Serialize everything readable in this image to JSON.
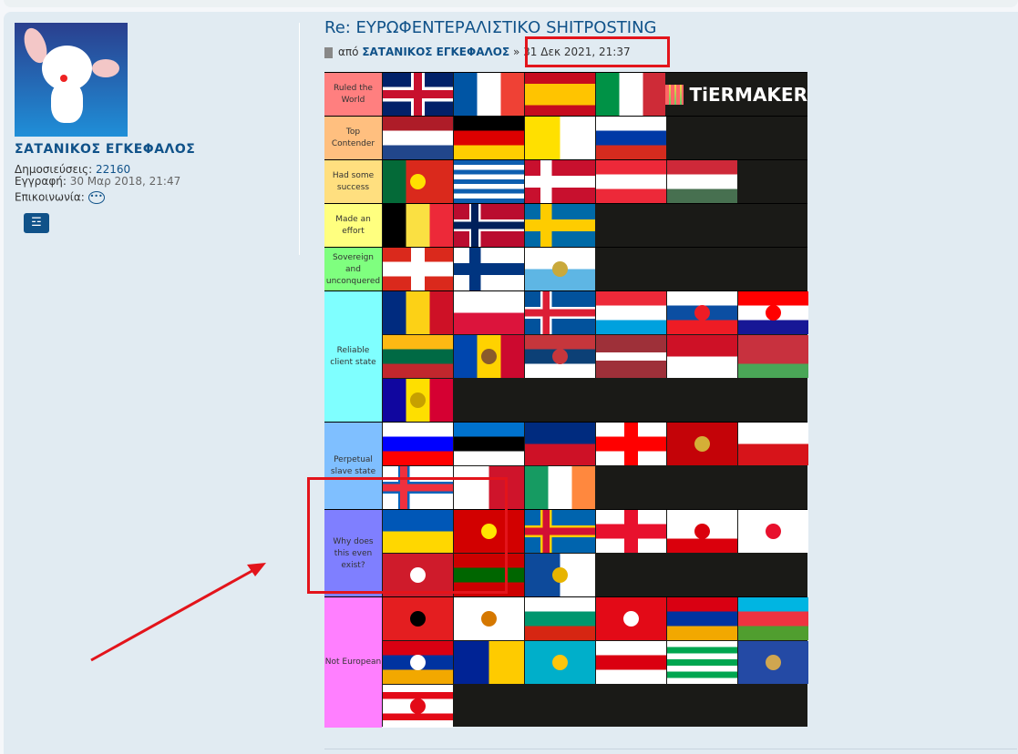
{
  "profile": {
    "username": "ΣΑΤΑΝΙΚΟΣ ΕΓΚΕΦΑΛΟΣ",
    "posts_label": "Δημοσιεύσεις:",
    "posts": "22160",
    "joined_label": "Εγγραφή:",
    "joined": "30 Μαρ 2018, 21:47",
    "contact_label": "Επικοινωνία:"
  },
  "post": {
    "title": "Re: ΕΥΡΩΦΕΝΤΕΡΑΛΙΣΤΙΚΟ SHITPOSTING",
    "by": "από",
    "author": "ΣΑΤΑΝΙΚΟΣ ΕΓΚΕΦΑΛΟΣ",
    "sep": "»",
    "date": "31 Δεκ 2021, 21:37"
  },
  "tierlist": {
    "logo": "TiERMAKER",
    "cell_bg": "#1a1a17",
    "tiers": [
      {
        "label": "Ruled the World",
        "color": "#ff7f7f",
        "flags": [
          {
            "id": "uk",
            "t": "cross",
            "bg": "#012169",
            "c": "#c8102e",
            "b": "#ffffff"
          },
          {
            "id": "france",
            "t": "v",
            "c": [
              "#0055a4",
              "#ffffff",
              "#ef4135"
            ]
          },
          {
            "id": "spain",
            "t": "h",
            "c": [
              "#c60b1e",
              "#ffc400",
              "#ffc400",
              "#c60b1e"
            ]
          },
          {
            "id": "italy",
            "t": "v",
            "c": [
              "#009246",
              "#ffffff",
              "#ce2b37"
            ]
          }
        ]
      },
      {
        "label": "Top Contender",
        "color": "#ffbf7f",
        "flags": [
          {
            "id": "netherlands",
            "t": "h",
            "c": [
              "#ae1c28",
              "#ffffff",
              "#21468b"
            ]
          },
          {
            "id": "germany",
            "t": "h",
            "c": [
              "#000000",
              "#dd0000",
              "#ffce00"
            ]
          },
          {
            "id": "vatican",
            "t": "v",
            "c": [
              "#ffe000",
              "#ffffff"
            ]
          },
          {
            "id": "russia",
            "t": "h",
            "c": [
              "#ffffff",
              "#0039a6",
              "#d52b1e"
            ]
          }
        ]
      },
      {
        "label": "Had some success",
        "color": "#ffdf7f",
        "flags": [
          {
            "id": "portugal",
            "t": "v",
            "c": [
              "#046a38",
              "#da291c",
              "#da291c"
            ],
            "em": "#ffe000"
          },
          {
            "id": "greece",
            "t": "h",
            "c": [
              "#0d5eaf",
              "#ffffff",
              "#0d5eaf",
              "#ffffff",
              "#0d5eaf",
              "#ffffff",
              "#0d5eaf",
              "#ffffff",
              "#0d5eaf"
            ]
          },
          {
            "id": "denmark",
            "t": "nordic",
            "bg": "#c8102e",
            "c": "#ffffff"
          },
          {
            "id": "austria",
            "t": "h",
            "c": [
              "#ed2939",
              "#ffffff",
              "#ed2939"
            ]
          },
          {
            "id": "hungary",
            "t": "h",
            "c": [
              "#ce2939",
              "#ffffff",
              "#477050"
            ]
          }
        ]
      },
      {
        "label": "Made an effort",
        "color": "#ffff7f",
        "flags": [
          {
            "id": "belgium",
            "t": "v",
            "c": [
              "#000000",
              "#fae042",
              "#ed2939"
            ]
          },
          {
            "id": "norway",
            "t": "nordic",
            "bg": "#ba0c2f",
            "c": "#00205b",
            "b": "#ffffff"
          },
          {
            "id": "sweden",
            "t": "nordic",
            "bg": "#006aa7",
            "c": "#fecc00"
          }
        ]
      },
      {
        "label": "Sovereign and unconquered",
        "color": "#7fff7f",
        "flags": [
          {
            "id": "switzerland",
            "t": "cross",
            "bg": "#da291c",
            "c": "#ffffff"
          },
          {
            "id": "finland",
            "t": "nordic",
            "bg": "#ffffff",
            "c": "#003580"
          },
          {
            "id": "san-marino",
            "t": "h",
            "c": [
              "#ffffff",
              "#5eb6e4"
            ],
            "em": "#c9a93b"
          }
        ]
      },
      {
        "label": "Reliable client state",
        "color": "#7fffff",
        "flags": [
          {
            "id": "romania",
            "t": "v",
            "c": [
              "#002b7f",
              "#fcd116",
              "#ce1126"
            ]
          },
          {
            "id": "poland",
            "t": "h",
            "c": [
              "#ffffff",
              "#dc143c"
            ]
          },
          {
            "id": "iceland",
            "t": "nordic",
            "bg": "#02529c",
            "c": "#dc1e35",
            "b": "#ffffff"
          },
          {
            "id": "luxembourg",
            "t": "h",
            "c": [
              "#ed2939",
              "#ffffff",
              "#00a1de"
            ]
          },
          {
            "id": "slovakia",
            "t": "h",
            "c": [
              "#ffffff",
              "#0b4ea2",
              "#ee1c25"
            ],
            "em": "#ee1c25"
          },
          {
            "id": "croatia",
            "t": "h",
            "c": [
              "#ff0000",
              "#ffffff",
              "#171796"
            ],
            "em": "#ff0000"
          },
          {
            "id": "lithuania",
            "t": "h",
            "c": [
              "#fdb913",
              "#006a44",
              "#c1272d"
            ]
          },
          {
            "id": "moldova",
            "t": "v",
            "c": [
              "#0046ae",
              "#ffd200",
              "#cc092f"
            ],
            "em": "#8a5a2b"
          },
          {
            "id": "serbia",
            "t": "h",
            "c": [
              "#c6363c",
              "#0c4076",
              "#ffffff"
            ],
            "em": "#c6363c"
          },
          {
            "id": "latvia",
            "t": "h",
            "c": [
              "#9e3039",
              "#9e3039",
              "#ffffff",
              "#9e3039",
              "#9e3039"
            ]
          },
          {
            "id": "monaco",
            "t": "h",
            "c": [
              "#ce1126",
              "#ffffff"
            ]
          },
          {
            "id": "belarus",
            "t": "h",
            "c": [
              "#c8313e",
              "#c8313e",
              "#4aa657"
            ]
          },
          {
            "id": "andorra",
            "t": "v",
            "c": [
              "#10069f",
              "#fedf00",
              "#d50032"
            ],
            "em": "#c7a000"
          }
        ]
      },
      {
        "label": "Perpetual slave state",
        "color": "#7fbfff",
        "flags": [
          {
            "id": "slovenia",
            "t": "h",
            "c": [
              "#ffffff",
              "#0000ff",
              "#ff0000"
            ]
          },
          {
            "id": "estonia",
            "t": "h",
            "c": [
              "#0072ce",
              "#000000",
              "#ffffff"
            ]
          },
          {
            "id": "liechtenstein",
            "t": "h",
            "c": [
              "#002b7f",
              "#ce1126"
            ]
          },
          {
            "id": "georgia",
            "t": "cross",
            "bg": "#ffffff",
            "c": "#ff0000"
          },
          {
            "id": "montenegro",
            "t": "h",
            "c": [
              "#c40308"
            ],
            "em": "#d4af37"
          },
          {
            "id": "czechia",
            "t": "h",
            "c": [
              "#ffffff",
              "#d7141a"
            ]
          },
          {
            "id": "faroe",
            "t": "nordic",
            "bg": "#ffffff",
            "c": "#ef303e",
            "b": "#0065bd"
          },
          {
            "id": "malta",
            "t": "v",
            "c": [
              "#ffffff",
              "#cf142b"
            ]
          },
          {
            "id": "ireland",
            "t": "v",
            "c": [
              "#169b62",
              "#ffffff",
              "#ff883e"
            ]
          }
        ]
      },
      {
        "label": "Why does this even exist?",
        "color": "#7f7fff",
        "flags": [
          {
            "id": "ukraine",
            "t": "h",
            "c": [
              "#0057b7",
              "#ffd700"
            ]
          },
          {
            "id": "north-macedonia",
            "t": "h",
            "c": [
              "#d20000"
            ],
            "em": "#ffe600"
          },
          {
            "id": "aland",
            "t": "nordic",
            "bg": "#0064ae",
            "c": "#d21034",
            "b": "#ffce00"
          },
          {
            "id": "guernsey",
            "t": "cross",
            "bg": "#ffffff",
            "c": "#e8112d"
          },
          {
            "id": "gibraltar",
            "t": "h",
            "c": [
              "#ffffff",
              "#ffffff",
              "#da000c"
            ],
            "em": "#da000c"
          },
          {
            "id": "jersey",
            "t": "h",
            "c": [
              "#ffffff"
            ],
            "em": "#e8112d"
          },
          {
            "id": "isle-of-man",
            "t": "h",
            "c": [
              "#cf1b2b"
            ],
            "em": "#ffffff"
          },
          {
            "id": "transnistria",
            "t": "h",
            "c": [
              "#cc0000",
              "#006600",
              "#cc0000"
            ]
          },
          {
            "id": "azores",
            "t": "v",
            "c": [
              "#0d4a9b",
              "#ffffff"
            ],
            "em": "#e7b400"
          }
        ]
      },
      {
        "label": "Not European",
        "color": "#ff7fff",
        "flags": [
          {
            "id": "albania",
            "t": "h",
            "c": [
              "#e41e20"
            ],
            "em": "#000000"
          },
          {
            "id": "cyprus",
            "t": "h",
            "c": [
              "#ffffff"
            ],
            "em": "#d57800"
          },
          {
            "id": "bulgaria",
            "t": "h",
            "c": [
              "#ffffff",
              "#00966e",
              "#d62612"
            ]
          },
          {
            "id": "turkey",
            "t": "h",
            "c": [
              "#e30a17"
            ],
            "em": "#ffffff"
          },
          {
            "id": "armenia",
            "t": "h",
            "c": [
              "#d90012",
              "#0033a0",
              "#f2a800"
            ]
          },
          {
            "id": "azerbaijan",
            "t": "h",
            "c": [
              "#00b5e2",
              "#ef3340",
              "#509e2f"
            ]
          },
          {
            "id": "artsakh",
            "t": "h",
            "c": [
              "#d90012",
              "#0033a0",
              "#f2a800"
            ],
            "em": "#ffffff"
          },
          {
            "id": "bosnia",
            "t": "v",
            "c": [
              "#002395",
              "#fecb00"
            ]
          },
          {
            "id": "kazakhstan",
            "t": "h",
            "c": [
              "#00afca"
            ],
            "em": "#fec50c"
          },
          {
            "id": "south-ossetia",
            "t": "h",
            "c": [
              "#ffffff",
              "#da0010",
              "#ffffff"
            ]
          },
          {
            "id": "abkhazia",
            "t": "h",
            "c": [
              "#ffffff",
              "#00a650",
              "#ffffff",
              "#00a650",
              "#ffffff",
              "#00a650",
              "#ffffff"
            ]
          },
          {
            "id": "kosovo",
            "t": "h",
            "c": [
              "#244aa5"
            ],
            "em": "#d0a650"
          },
          {
            "id": "northern-cyprus",
            "t": "h",
            "c": [
              "#ffffff",
              "#e30a17",
              "#ffffff",
              "#ffffff",
              "#e30a17",
              "#ffffff"
            ],
            "em": "#e30a17"
          }
        ]
      }
    ]
  },
  "annotations": {
    "color": "#e3141b"
  }
}
